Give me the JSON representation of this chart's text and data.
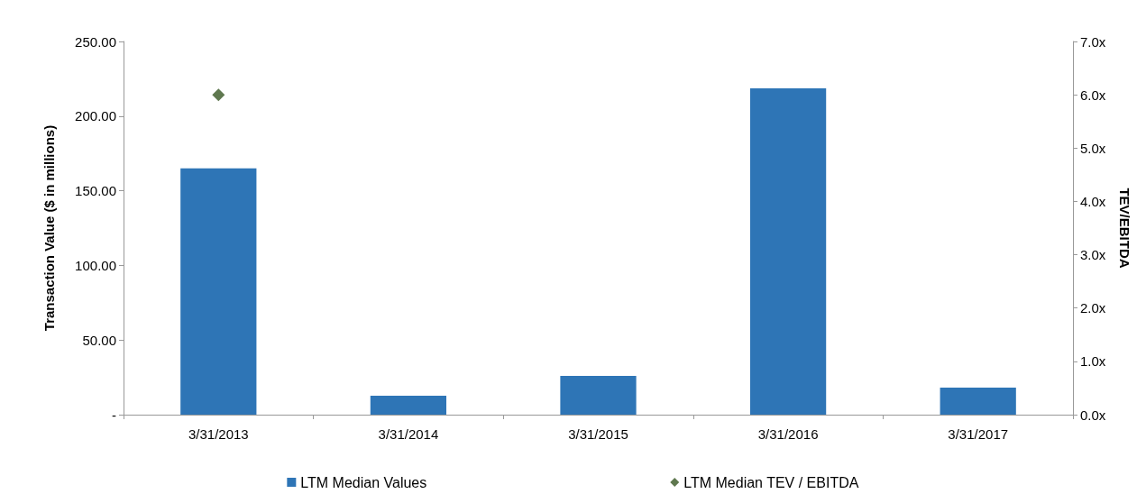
{
  "chart_data": {
    "type": "bar",
    "categories": [
      "3/31/2013",
      "3/31/2014",
      "3/31/2015",
      "3/31/2016",
      "3/31/2017"
    ],
    "ylabel": "Transaction Value ($ in millions)",
    "y2label": "TEV/EBITDA",
    "series": [
      {
        "name": "LTM Median Values",
        "color": "#2e75b6",
        "values": [
          165,
          12.7,
          26,
          218.6,
          18.1
        ]
      },
      {
        "name": "LTM Median TEV / EBITDA",
        "type": "scatter",
        "axis": "y2",
        "color": "#375623",
        "marker": "diamond",
        "x": [
          "3/31/2013"
        ],
        "values": [
          6.0
        ]
      }
    ],
    "ylim": [
      0,
      250
    ],
    "yticks": [
      {
        "value": 0,
        "label": "-"
      },
      {
        "value": 50,
        "label": "50.00"
      },
      {
        "value": 100,
        "label": "100.00"
      },
      {
        "value": 150,
        "label": "150.00"
      },
      {
        "value": 200,
        "label": "200.00"
      },
      {
        "value": 250,
        "label": "250.00"
      }
    ],
    "y2lim": [
      0,
      7
    ],
    "y2ticks": [
      {
        "value": 0,
        "label": "0.0x"
      },
      {
        "value": 1,
        "label": "1.0x"
      },
      {
        "value": 2,
        "label": "2.0x"
      },
      {
        "value": 3,
        "label": "3.0x"
      },
      {
        "value": 4,
        "label": "4.0x"
      },
      {
        "value": 5,
        "label": "5.0x"
      },
      {
        "value": 6,
        "label": "6.0x"
      },
      {
        "value": 7,
        "label": "7.0x"
      }
    ],
    "grid": false,
    "legend": "bottom"
  }
}
